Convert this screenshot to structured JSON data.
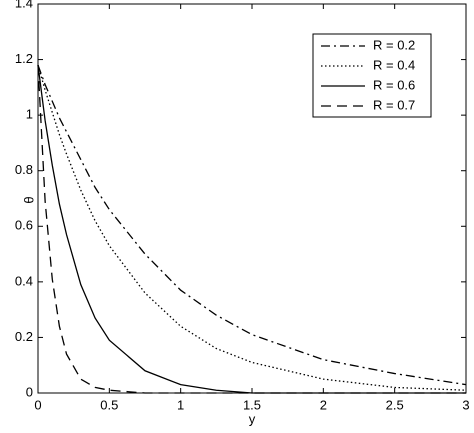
{
  "chart_data": {
    "type": "line",
    "xlabel": "y",
    "ylabel": "θ",
    "x": [
      0,
      0.05,
      0.1,
      0.15,
      0.2,
      0.3,
      0.4,
      0.5,
      0.75,
      1,
      1.25,
      1.5,
      2,
      2.5,
      3
    ],
    "series": [
      {
        "name": "R = 0.2",
        "color": "#000000",
        "line_style": "dash-dot",
        "values": [
          1.18,
          1.11,
          1.05,
          0.99,
          0.94,
          0.84,
          0.74,
          0.66,
          0.5,
          0.37,
          0.28,
          0.21,
          0.12,
          0.07,
          0.03
        ]
      },
      {
        "name": "R = 0.4",
        "color": "#000000",
        "line_style": "dotted",
        "values": [
          1.18,
          1.09,
          1.01,
          0.93,
          0.86,
          0.73,
          0.62,
          0.53,
          0.36,
          0.24,
          0.16,
          0.11,
          0.05,
          0.02,
          0.01
        ]
      },
      {
        "name": "R = 0.6",
        "color": "#000000",
        "line_style": "solid",
        "values": [
          1.18,
          0.98,
          0.82,
          0.68,
          0.57,
          0.39,
          0.27,
          0.19,
          0.08,
          0.03,
          0.01,
          0,
          0,
          0,
          0
        ]
      },
      {
        "name": "R = 0.7",
        "color": "#000000",
        "line_style": "dashed",
        "values": [
          1.18,
          0.69,
          0.41,
          0.24,
          0.14,
          0.05,
          0.02,
          0.01,
          0,
          0,
          0,
          0,
          0,
          0,
          0
        ]
      }
    ],
    "xlim": [
      0,
      3
    ],
    "xticks": [
      0,
      0.5,
      1,
      1.5,
      2,
      2.5,
      3
    ],
    "ylim": [
      0,
      1.4
    ],
    "yticks": [
      0,
      0.2,
      0.4,
      0.6,
      0.8,
      1,
      1.2,
      1.4
    ],
    "grid": false,
    "legend": "upper right"
  }
}
